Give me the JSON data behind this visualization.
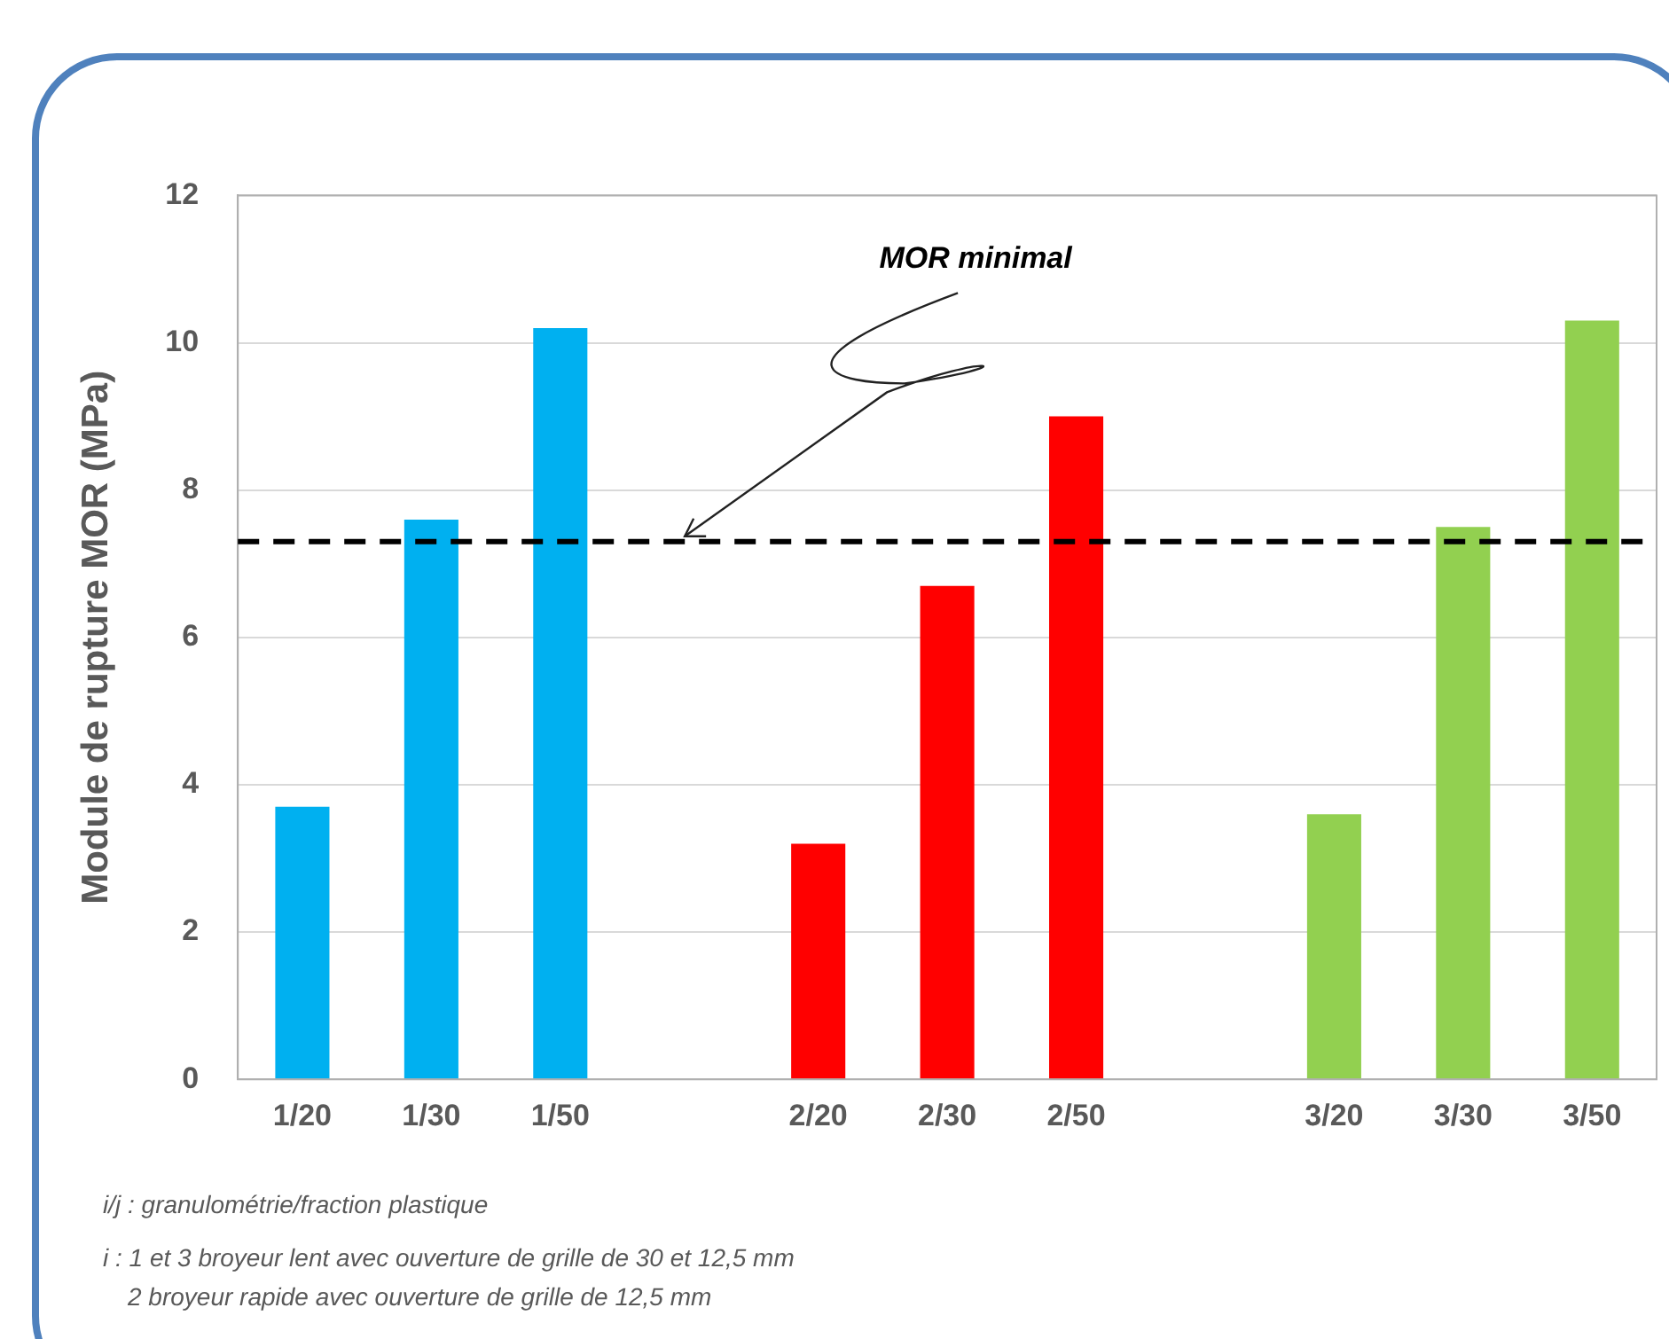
{
  "chart_data": {
    "type": "bar",
    "ylabel": "Module de rupture MOR (MPa)",
    "categories": [
      "1/20",
      "1/30",
      "1/50",
      null,
      "2/20",
      "2/30",
      "2/50",
      null,
      "3/20",
      "3/30",
      "3/50"
    ],
    "values": [
      3.7,
      7.6,
      10.2,
      null,
      3.2,
      6.7,
      9.0,
      null,
      3.6,
      7.5,
      10.3
    ],
    "colors": [
      "#00b0f0",
      "#00b0f0",
      "#00b0f0",
      "#ffffff",
      "#ff0000",
      "#ff0000",
      "#ff0000",
      "#ffffff",
      "#92d050",
      "#92d050",
      "#92d050"
    ],
    "ylim": [
      0,
      12
    ],
    "yticks": [
      0,
      2,
      4,
      6,
      8,
      10,
      12
    ],
    "grid": "y",
    "legend": false,
    "ref_lines": [
      {
        "axis": "y",
        "value": 7.3,
        "label": "MOR minimal",
        "color": "#000000",
        "line_style": "dashed"
      }
    ],
    "annotations": [
      "i/j : granulométrie/fraction plastique",
      "i : 1 et 3 broyeur lent avec ouverture de grille de 30 et 12,5 mm",
      "2  broyeur rapide avec ouverture de grille de 12,5 mm"
    ]
  }
}
